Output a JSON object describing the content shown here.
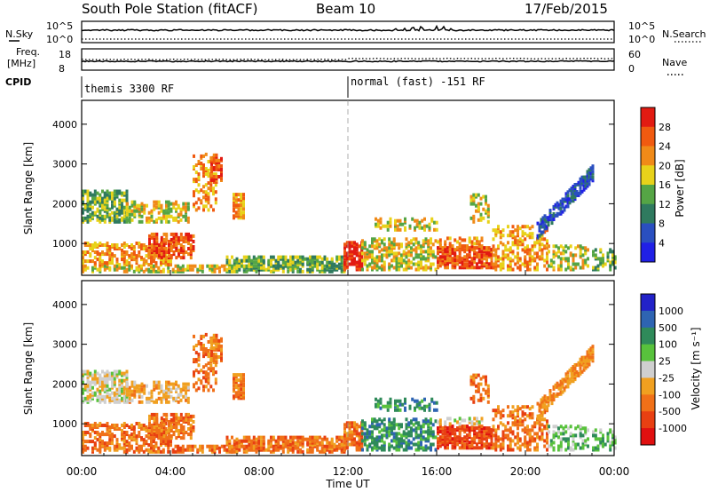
{
  "header": {
    "title": "South Pole Station (fitACF)",
    "beam": "Beam 10",
    "date": "17/Feb/2015"
  },
  "strips": {
    "nsky": {
      "label": "N.Sky",
      "ticks": [
        "10^5",
        "10^0"
      ]
    },
    "nsearch": {
      "label": "N.Search",
      "ticks": [
        "10^5",
        "10^0"
      ]
    },
    "freq": {
      "label_line1": "Freq.",
      "label_line2": "[MHz]",
      "ticks": [
        "18",
        "8"
      ]
    },
    "nave": {
      "label": "Nave",
      "ticks": [
        "60",
        "0"
      ]
    },
    "cpid": {
      "label": "CPID",
      "modes": [
        "themis 3300 RF",
        "normal (fast) -151 RF"
      ]
    }
  },
  "colors": {
    "power": [
      "#2020e6",
      "#2a4fc0",
      "#2f7a5f",
      "#55a545",
      "#e8d21a",
      "#f08a18",
      "#f05a10",
      "#e21b12"
    ],
    "velocity": [
      "#2222c8",
      "#2e64b2",
      "#2f8a5a",
      "#58c23c",
      "#cfcfcf",
      "#f0a020",
      "#f07018",
      "#e84012",
      "#e01010"
    ]
  },
  "chart_data": [
    {
      "type": "heatmap",
      "name": "power-panel",
      "ylabel": "Slant Range [km]",
      "yticks": [
        1000,
        2000,
        3000,
        4000
      ],
      "ylim": [
        200,
        4600
      ],
      "xlim": [
        0,
        24
      ],
      "colorbar": {
        "label": "Power [dB]",
        "ticks": [
          "4",
          "8",
          "12",
          "16",
          "20",
          "24",
          "28"
        ],
        "range": [
          0,
          30
        ]
      }
    },
    {
      "type": "heatmap",
      "name": "velocity-panel",
      "ylabel": "Slant Range [km]",
      "yticks": [
        1000,
        2000,
        3000,
        4000
      ],
      "ylim": [
        200,
        4600
      ],
      "xlim": [
        0,
        24
      ],
      "xticks": [
        "00:00",
        "04:00",
        "08:00",
        "12:00",
        "16:00",
        "20:00",
        "00:00"
      ],
      "xlabel": "Time UT",
      "colorbar": {
        "label": "Velocity [m s⁻¹]",
        "ticks": [
          "1000",
          "500",
          "100",
          "25",
          "-25",
          "-100",
          "-500",
          "-1000"
        ]
      }
    }
  ]
}
